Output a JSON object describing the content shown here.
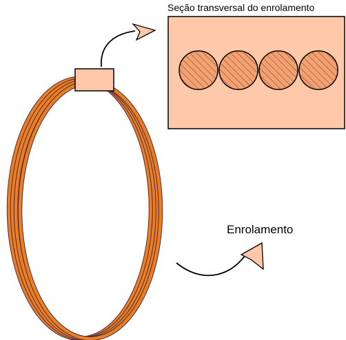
{
  "labels": {
    "cross_section_title": "Seção transversal do enrolamento",
    "coil_label": "Enrolamento"
  },
  "colors": {
    "wire": "#f07f1b",
    "wire_edge": "#3b2a55",
    "section_fill": "#ffc8a8",
    "conductor_fill": "#f4a070",
    "arrow_fill": "#ffc8a8",
    "outline": "#000000"
  },
  "cross_section": {
    "conductor_count": 4
  }
}
